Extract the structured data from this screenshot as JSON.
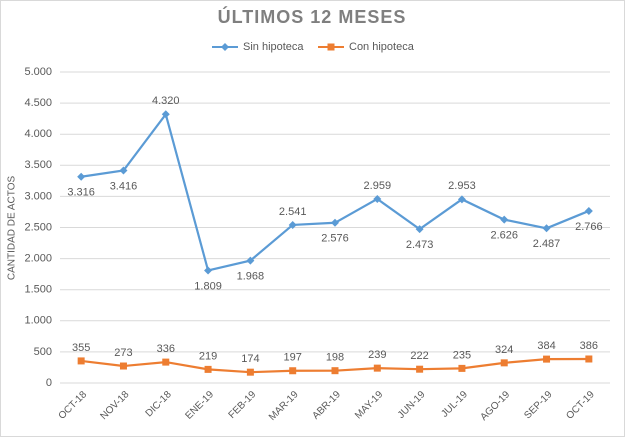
{
  "chart_data": {
    "type": "line",
    "title": "ÚLTIMOS 12 MESES",
    "y_label": "CANTIDAD DE ACTOS",
    "categories": [
      "OCT-18",
      "NOV-18",
      "DIC-18",
      "ENE-19",
      "FEB-19",
      "MAR-19",
      "ABR-19",
      "MAY-19",
      "JUN-19",
      "JUL-19",
      "AGO-19",
      "SEP-19",
      "OCT-19"
    ],
    "series": [
      {
        "name": "Sin  hipoteca",
        "color": "#5b9bd5",
        "marker": "diamond",
        "values": [
          3316,
          3416,
          4320,
          1809,
          1968,
          2541,
          2576,
          2959,
          2473,
          2953,
          2626,
          2487,
          2766
        ],
        "value_labels": [
          "3.316",
          "3.416",
          "4.320",
          "1.809",
          "1.968",
          "2.541",
          "2.576",
          "2.959",
          "2.473",
          "2.953",
          "2.626",
          "2.487",
          "2.766"
        ]
      },
      {
        "name": "Con hipoteca",
        "color": "#ed7d31",
        "marker": "square",
        "values": [
          355,
          273,
          336,
          219,
          174,
          197,
          198,
          239,
          222,
          235,
          324,
          384,
          386
        ]
      }
    ],
    "ylim": [
      0,
      5000
    ],
    "yticks": [
      0,
      500,
      {
        "value": 1000,
        "label": "1.000"
      },
      {
        "value": 1500,
        "label": "1.500"
      },
      {
        "value": 2000,
        "label": "2.000"
      },
      {
        "value": 2500,
        "label": "2.500"
      },
      {
        "value": 3000,
        "label": "3.000"
      },
      {
        "value": 3500,
        "label": "3.500"
      },
      {
        "value": 4000,
        "label": "4.000"
      },
      {
        "value": 4500,
        "label": "4.500"
      },
      {
        "value": 5000,
        "label": "5.000"
      }
    ],
    "grid": true,
    "legend": "top"
  }
}
